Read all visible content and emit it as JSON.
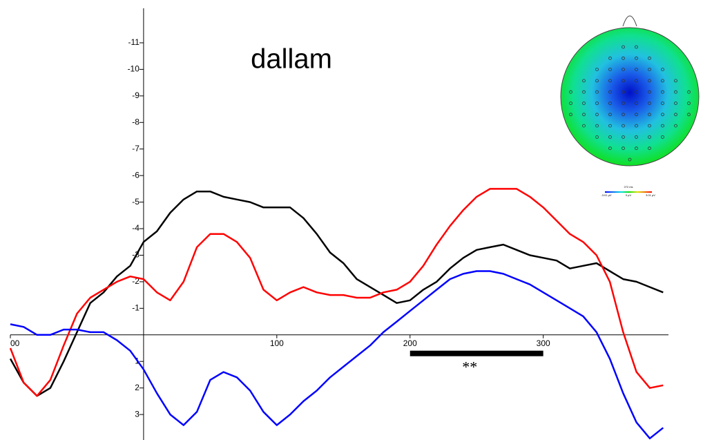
{
  "chart_data": {
    "type": "line",
    "title": "dallam",
    "x": [
      -100,
      -90,
      -80,
      -70,
      -60,
      -50,
      -40,
      -30,
      -20,
      -10,
      0,
      10,
      20,
      30,
      40,
      50,
      60,
      70,
      80,
      90,
      100,
      110,
      120,
      130,
      140,
      150,
      160,
      170,
      180,
      190,
      200,
      210,
      220,
      230,
      240,
      250,
      260,
      270,
      280,
      290,
      300,
      310,
      320,
      330,
      340,
      350,
      360,
      370,
      380,
      390
    ],
    "series": [
      {
        "color": "#000000",
        "values": [
          0.9,
          1.8,
          2.3,
          2.0,
          1.0,
          -0.1,
          -1.2,
          -1.6,
          -2.2,
          -2.6,
          -3.5,
          -3.9,
          -4.6,
          -5.1,
          -5.4,
          -5.4,
          -5.2,
          -5.1,
          -5.0,
          -4.8,
          -4.8,
          -4.8,
          -4.4,
          -3.8,
          -3.1,
          -2.7,
          -2.1,
          -1.8,
          -1.5,
          -1.2,
          -1.3,
          -1.7,
          -2.0,
          -2.5,
          -2.9,
          -3.2,
          -3.3,
          -3.4,
          -3.2,
          -3.0,
          -2.9,
          -2.8,
          -2.5,
          -2.6,
          -2.7,
          -2.4,
          -2.1,
          -2.0,
          -1.8,
          -1.6
        ]
      },
      {
        "color": "#ff0000",
        "values": [
          0.5,
          1.8,
          2.3,
          1.7,
          0.4,
          -0.8,
          -1.4,
          -1.7,
          -2.0,
          -2.2,
          -2.1,
          -1.6,
          -1.3,
          -2.0,
          -3.3,
          -3.8,
          -3.8,
          -3.5,
          -2.9,
          -1.7,
          -1.3,
          -1.6,
          -1.8,
          -1.6,
          -1.5,
          -1.5,
          -1.4,
          -1.4,
          -1.6,
          -1.7,
          -2.0,
          -2.6,
          -3.4,
          -4.1,
          -4.7,
          -5.2,
          -5.5,
          -5.5,
          -5.5,
          -5.2,
          -4.8,
          -4.3,
          -3.8,
          -3.5,
          -3.0,
          -2.0,
          -0.1,
          1.4,
          2.0,
          1.9
        ]
      },
      {
        "color": "#0000ff",
        "values": [
          -0.4,
          -0.3,
          0.0,
          0.0,
          -0.2,
          -0.2,
          -0.1,
          -0.1,
          0.2,
          0.6,
          1.3,
          2.2,
          3.0,
          3.4,
          2.9,
          1.7,
          1.4,
          1.6,
          2.1,
          2.9,
          3.4,
          3.0,
          2.5,
          2.1,
          1.6,
          1.2,
          0.8,
          0.4,
          -0.1,
          -0.5,
          -0.9,
          -1.3,
          -1.7,
          -2.1,
          -2.3,
          -2.4,
          -2.4,
          -2.3,
          -2.1,
          -1.9,
          -1.6,
          -1.3,
          -1.0,
          -0.7,
          -0.1,
          0.9,
          2.2,
          3.3,
          3.9,
          3.5
        ]
      }
    ],
    "xlim": [
      -100,
      394
    ],
    "ylim": [
      3.96,
      -12.3
    ],
    "xticks": [
      {
        "value": -100,
        "label": "00"
      },
      100,
      200,
      300
    ],
    "yticks": [
      -11,
      -10,
      -9,
      -8,
      -7,
      -6,
      -5,
      -4,
      -3,
      -2,
      -1,
      1,
      2,
      3
    ],
    "significance": {
      "x": [
        200,
        300
      ],
      "y": 0.7,
      "label": "**"
    },
    "topomap": {
      "time_label": "272 ms",
      "scale_labels": [
        "-3.01 µV",
        "0 µV",
        "3.01 µV"
      ]
    }
  }
}
